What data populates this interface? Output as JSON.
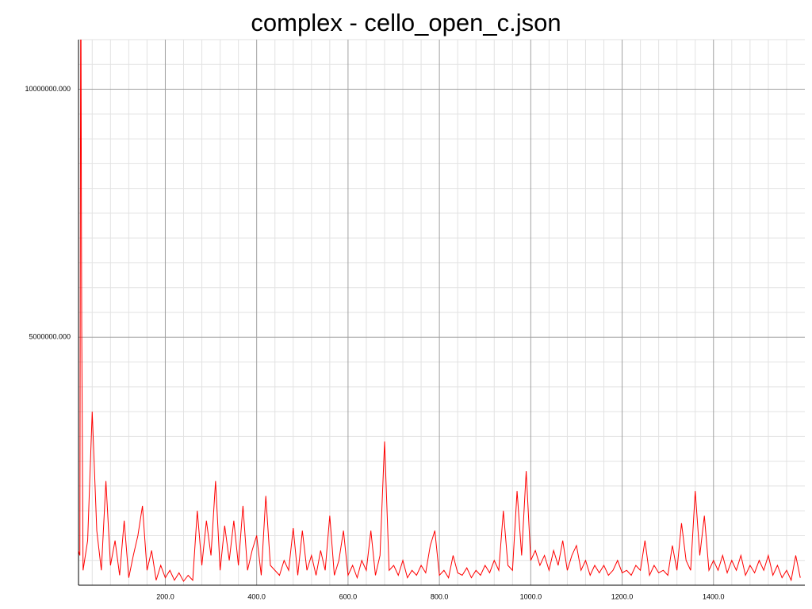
{
  "chart_data": {
    "type": "line",
    "title": "complex - cello_open_c.json",
    "x": [
      10,
      13,
      15,
      17,
      20,
      30,
      40,
      50,
      60,
      70,
      80,
      90,
      100,
      110,
      120,
      130,
      140,
      150,
      160,
      170,
      180,
      190,
      200,
      210,
      220,
      230,
      240,
      250,
      260,
      270,
      280,
      290,
      300,
      310,
      320,
      330,
      340,
      350,
      360,
      370,
      380,
      390,
      400,
      410,
      420,
      430,
      440,
      450,
      460,
      470,
      480,
      490,
      500,
      510,
      520,
      530,
      540,
      550,
      560,
      570,
      580,
      590,
      600,
      610,
      620,
      630,
      640,
      650,
      660,
      670,
      680,
      690,
      700,
      710,
      720,
      730,
      740,
      750,
      760,
      770,
      780,
      790,
      800,
      810,
      820,
      830,
      840,
      850,
      860,
      870,
      880,
      890,
      900,
      910,
      920,
      930,
      940,
      950,
      960,
      970,
      980,
      990,
      1000,
      1010,
      1020,
      1030,
      1040,
      1050,
      1060,
      1070,
      1080,
      1090,
      1100,
      1110,
      1120,
      1130,
      1140,
      1150,
      1160,
      1170,
      1180,
      1190,
      1200,
      1210,
      1220,
      1230,
      1240,
      1250,
      1260,
      1270,
      1280,
      1290,
      1300,
      1310,
      1320,
      1330,
      1340,
      1350,
      1360,
      1370,
      1380,
      1390,
      1400,
      1410,
      1420,
      1430,
      1440,
      1450,
      1460,
      1470,
      1480,
      1490,
      1500,
      1510,
      1520,
      1530,
      1540,
      1550,
      1560,
      1570,
      1580,
      1590
    ],
    "series": [
      {
        "name": "complex",
        "color": "#ff0000",
        "values": [
          700000,
          600000,
          13000000,
          5200000,
          300000,
          900000,
          3500000,
          1100000,
          300000,
          2100000,
          400000,
          900000,
          200000,
          1300000,
          150000,
          600000,
          1000000,
          1600000,
          300000,
          700000,
          100000,
          400000,
          150000,
          300000,
          100000,
          250000,
          80000,
          200000,
          100000,
          1500000,
          400000,
          1300000,
          600000,
          2100000,
          300000,
          1200000,
          500000,
          1300000,
          400000,
          1600000,
          300000,
          700000,
          1000000,
          200000,
          1800000,
          400000,
          300000,
          200000,
          500000,
          300000,
          1150000,
          200000,
          1100000,
          300000,
          600000,
          200000,
          700000,
          300000,
          1400000,
          200000,
          500000,
          1100000,
          200000,
          400000,
          150000,
          500000,
          300000,
          1100000,
          200000,
          600000,
          2900000,
          300000,
          400000,
          200000,
          500000,
          150000,
          300000,
          200000,
          400000,
          250000,
          800000,
          1100000,
          200000,
          300000,
          150000,
          600000,
          250000,
          200000,
          350000,
          150000,
          300000,
          200000,
          400000,
          250000,
          500000,
          300000,
          1500000,
          400000,
          300000,
          1900000,
          600000,
          2300000,
          500000,
          700000,
          400000,
          600000,
          300000,
          700000,
          400000,
          900000,
          300000,
          600000,
          800000,
          300000,
          500000,
          200000,
          400000,
          250000,
          400000,
          200000,
          300000,
          500000,
          250000,
          300000,
          200000,
          400000,
          300000,
          900000,
          200000,
          400000,
          250000,
          300000,
          200000,
          800000,
          300000,
          1250000,
          500000,
          300000,
          1900000,
          600000,
          1400000,
          300000,
          500000,
          300000,
          600000,
          250000,
          500000,
          300000,
          600000,
          200000,
          400000,
          250000,
          500000,
          300000,
          600000,
          200000,
          400000,
          150000,
          300000,
          100000,
          600000,
          150000
        ]
      }
    ],
    "xlim": [
      10,
      1600
    ],
    "ylim": [
      0,
      11000000
    ],
    "xticks": [
      {
        "value": 200,
        "label": "200.0"
      },
      {
        "value": 400,
        "label": "400.0"
      },
      {
        "value": 600,
        "label": "600.0"
      },
      {
        "value": 800,
        "label": "800.0"
      },
      {
        "value": 1000,
        "label": "1000.0"
      },
      {
        "value": 1200,
        "label": "1200.0"
      },
      {
        "value": 1400,
        "label": "1400.0"
      }
    ],
    "yticks": [
      {
        "value": 5000000,
        "label": "5000000.000"
      },
      {
        "value": 10000000,
        "label": "10000000.000"
      }
    ],
    "grid": true,
    "x_minor_divisions": 5,
    "y_minor_divisions": 10
  }
}
